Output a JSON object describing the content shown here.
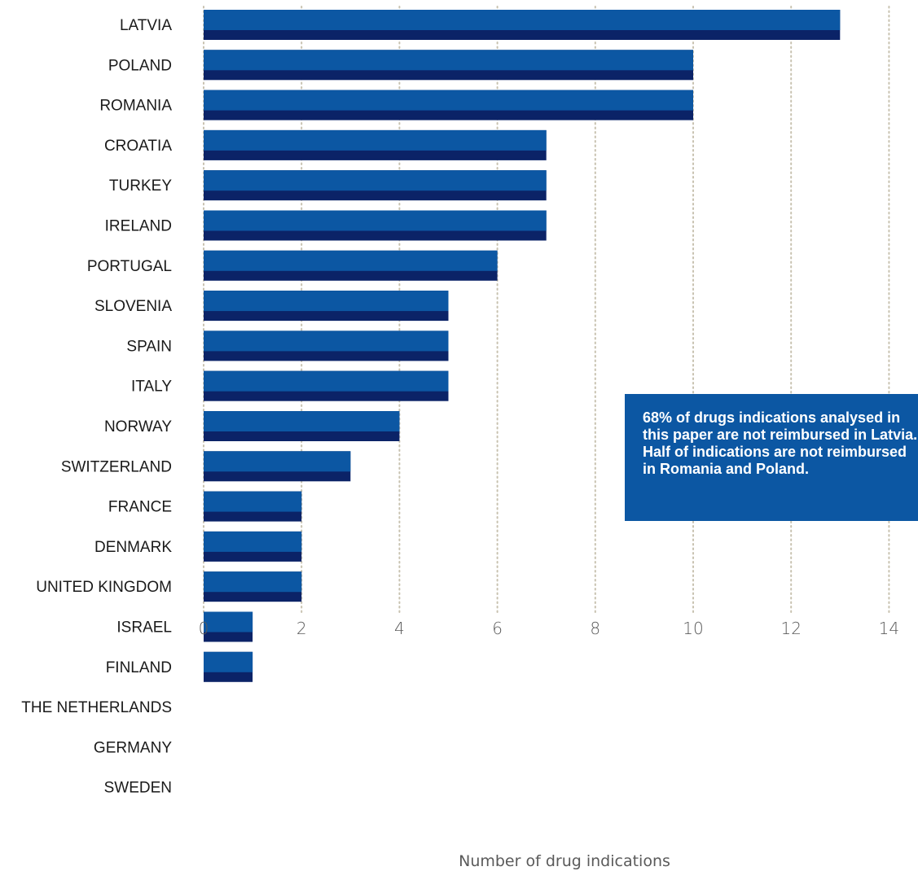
{
  "chart_data": {
    "type": "bar",
    "orientation": "horizontal",
    "categories": [
      "LATVIA",
      "POLAND",
      "ROMANIA",
      "CROATIA",
      "TURKEY",
      "IRELAND",
      "PORTUGAL",
      "SLOVENIA",
      "SPAIN",
      "ITALY",
      "NORWAY",
      "SWITZERLAND",
      "FRANCE",
      "DENMARK",
      "UNITED KINGDOM",
      "ISRAEL",
      "FINLAND",
      "THE NETHERLANDS",
      "GERMANY",
      "SWEDEN"
    ],
    "values": [
      13,
      10,
      10,
      7,
      7,
      7,
      6,
      5,
      5,
      5,
      4,
      3,
      2,
      2,
      2,
      1,
      1,
      0,
      0,
      0
    ],
    "xlabel": "Number of drug indications",
    "ylabel": "",
    "xlim": [
      0,
      14
    ],
    "xticks": [
      "0",
      "2",
      "4",
      "6",
      "8",
      "10",
      "12",
      "14"
    ],
    "grid": "vertical dotted",
    "colors": {
      "bar_top": "#0c57a3",
      "bar_bottom": "#0b2367",
      "grid": "#c8c2b0",
      "annotation_bg": "#0c57a3"
    },
    "annotation": "68% of drugs indications analysed in\nthis paper are not reimbursed in Latvia.\nHalf of indications are not reimbursed\nin Romania and Poland."
  }
}
